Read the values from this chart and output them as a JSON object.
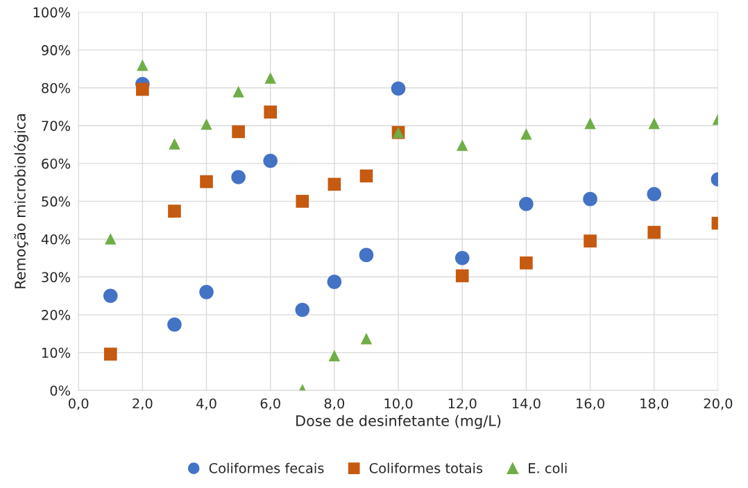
{
  "chart_data": {
    "type": "scatter",
    "xlabel": "Dose de desinfetante (mg/L)",
    "ylabel": "Remoção microbiológica",
    "x": [
      1,
      2,
      3,
      4,
      5,
      6,
      7,
      8,
      9,
      10,
      12,
      14,
      16,
      18,
      20
    ],
    "series": [
      {
        "name": "Coliformes fecais",
        "color": "#4472c4",
        "marker": "circle",
        "values": [
          25,
          81,
          17.4,
          26,
          56.4,
          60.7,
          21.3,
          28.7,
          35.8,
          79.8,
          35,
          49.3,
          50.6,
          51.9,
          55.8
        ]
      },
      {
        "name": "Coliformes totais",
        "color": "#c55a11",
        "marker": "square",
        "values": [
          9.6,
          79.6,
          47.4,
          55.2,
          68.4,
          73.6,
          50,
          54.5,
          56.7,
          68.2,
          30.3,
          33.7,
          39.5,
          41.8,
          44.2
        ]
      },
      {
        "name": "E. coli",
        "color": "#70ad47",
        "marker": "triangle",
        "values": [
          40.1,
          86,
          65.2,
          70.4,
          79,
          82.6,
          0.2,
          9.2,
          13.7,
          68.2,
          64.8,
          67.8,
          70.6,
          70.6,
          71.7
        ]
      }
    ],
    "xlim": [
      0,
      20
    ],
    "xticks": [
      {
        "value": 0,
        "label": "0,0"
      },
      {
        "value": 2,
        "label": "2,0"
      },
      {
        "value": 4,
        "label": "4,0"
      },
      {
        "value": 6,
        "label": "6,0"
      },
      {
        "value": 8,
        "label": "8,0"
      },
      {
        "value": 10,
        "label": "10,0"
      },
      {
        "value": 12,
        "label": "12,0"
      },
      {
        "value": 14,
        "label": "14,0"
      },
      {
        "value": 16,
        "label": "16,0"
      },
      {
        "value": 18,
        "label": "18,0"
      },
      {
        "value": 20,
        "label": "20,0"
      }
    ],
    "ylim": [
      0,
      100
    ],
    "yticks": [
      {
        "value": 0,
        "label": "0%"
      },
      {
        "value": 10,
        "label": "10%"
      },
      {
        "value": 20,
        "label": "20%"
      },
      {
        "value": 30,
        "label": "30%"
      },
      {
        "value": 40,
        "label": "40%"
      },
      {
        "value": 50,
        "label": "50%"
      },
      {
        "value": 60,
        "label": "60%"
      },
      {
        "value": 70,
        "label": "70%"
      },
      {
        "value": 80,
        "label": "80%"
      },
      {
        "value": 90,
        "label": "90%"
      },
      {
        "value": 100,
        "label": "100%"
      }
    ],
    "grid": true,
    "legend": "bottom"
  }
}
